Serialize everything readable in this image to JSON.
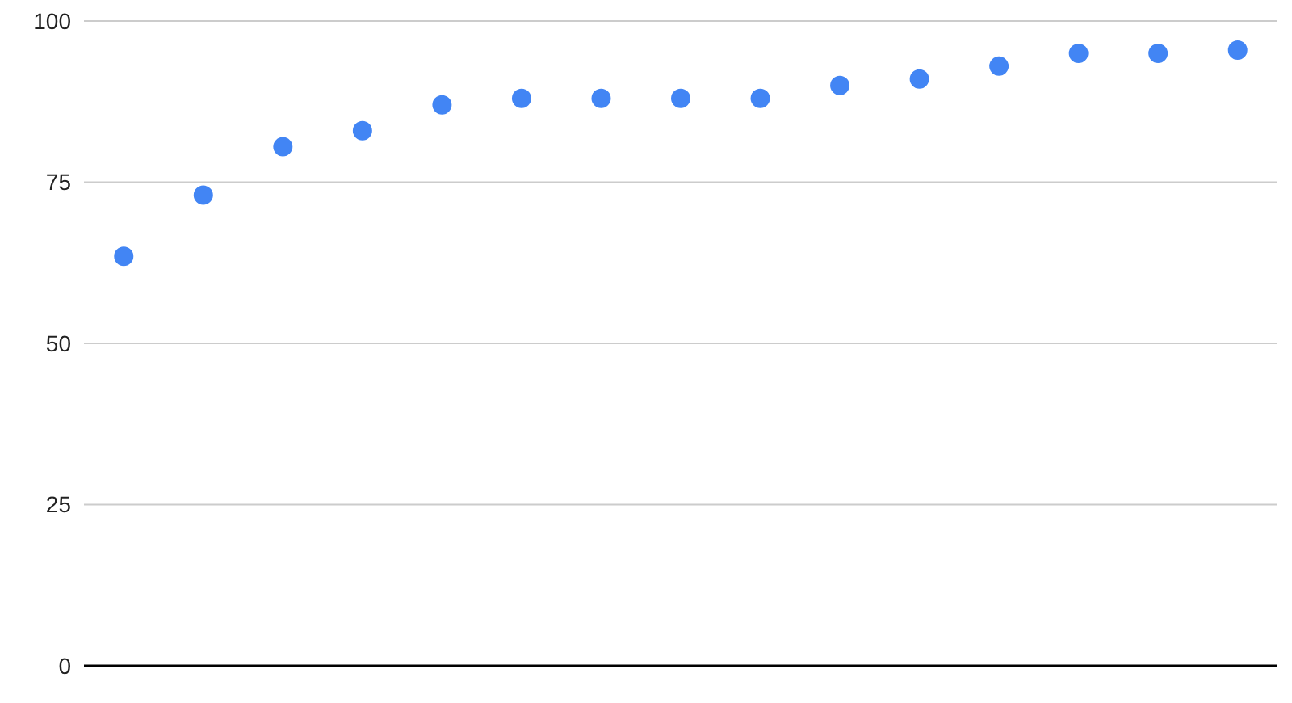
{
  "chart_data": {
    "type": "scatter",
    "categories": [
      null,
      null,
      null,
      null,
      null,
      null,
      null,
      null,
      null,
      null,
      null,
      null,
      null,
      null,
      null
    ],
    "series": [
      {
        "color": "#4285f4",
        "values": [
          63.5,
          73,
          80.5,
          83,
          87,
          88,
          88,
          88,
          88,
          90,
          91,
          93,
          95,
          95,
          95.5
        ]
      }
    ],
    "ylim": [
      0,
      100
    ],
    "yticks": [
      0,
      25,
      50,
      75,
      100
    ],
    "grid": "y",
    "marker": "circle",
    "tick_labels": "y"
  }
}
